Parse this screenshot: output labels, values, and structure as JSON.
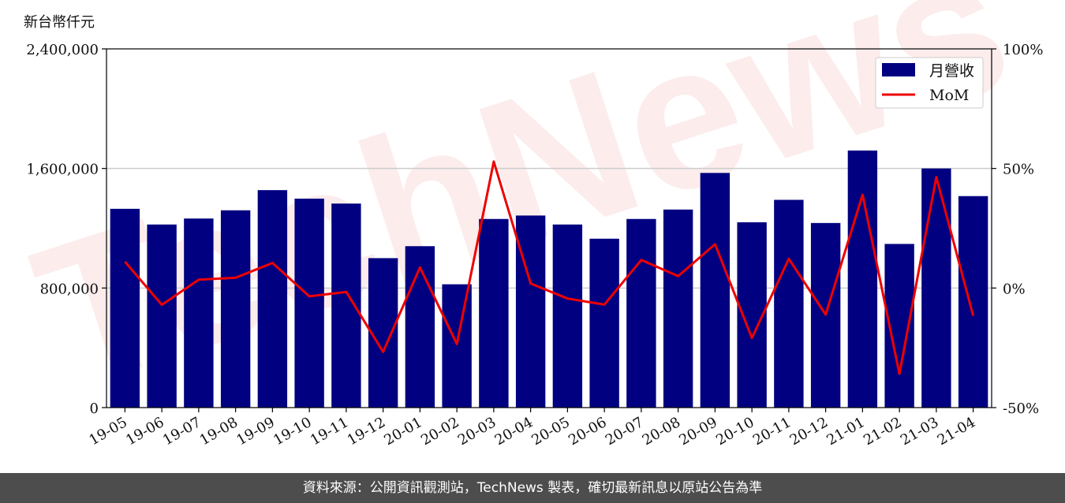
{
  "unit_label": "新台幣仟元",
  "footer": "資料來源：公開資訊觀測站，TechNews 製表，確切最新訊息以原站公告為準",
  "watermark": "TechNews",
  "chart_data": {
    "type": "bar",
    "categories": [
      "19-05",
      "19-06",
      "19-07",
      "19-08",
      "19-09",
      "19-10",
      "19-11",
      "19-12",
      "20-01",
      "20-02",
      "20-03",
      "20-04",
      "20-05",
      "20-06",
      "20-07",
      "20-08",
      "20-09",
      "20-10",
      "20-11",
      "20-12",
      "21-01",
      "21-02",
      "21-03",
      "21-04"
    ],
    "series": [
      {
        "name": "月營收",
        "axis": "left",
        "type": "bar",
        "color": "#000080",
        "values": [
          1330000,
          1225000,
          1265000,
          1320000,
          1455000,
          1398000,
          1365000,
          1000000,
          1080000,
          825000,
          1262000,
          1285000,
          1225000,
          1130000,
          1262000,
          1325000,
          1570000,
          1240000,
          1390000,
          1235000,
          1720000,
          1095000,
          1600000,
          1415000
        ]
      },
      {
        "name": "MoM",
        "axis": "right",
        "type": "line",
        "color": "#ee0000",
        "values": [
          11,
          -7,
          3.5,
          4.3,
          10.5,
          -3.5,
          -1.6,
          -26.7,
          8.6,
          -23.4,
          52.9,
          1.9,
          -4.4,
          -6.9,
          11.7,
          5,
          18.3,
          -20.9,
          12.2,
          -11.1,
          39,
          -35.9,
          46.4,
          -11.6
        ]
      }
    ],
    "y_left": {
      "ylim": [
        0,
        2400000
      ],
      "ticks": [
        0,
        800000,
        1600000,
        2400000
      ],
      "tick_labels": [
        "0",
        "800,000",
        "1,600,000",
        "2,400,000"
      ]
    },
    "y_right": {
      "ylim": [
        -50,
        100
      ],
      "ticks": [
        -50,
        0,
        50,
        100
      ],
      "tick_labels": [
        "-50%",
        "0%",
        "50%",
        "100%"
      ]
    },
    "grid": true,
    "legend_position": "top-right"
  }
}
